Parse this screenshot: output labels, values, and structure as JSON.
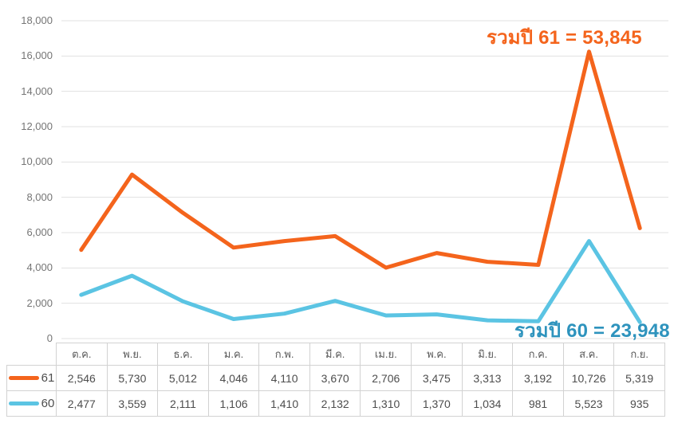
{
  "chart_data": {
    "type": "line",
    "stacked": true,
    "title": "",
    "xlabel": "",
    "ylabel": "",
    "categories": [
      "ต.ค.",
      "พ.ย.",
      "ธ.ค.",
      "ม.ค.",
      "ก.พ.",
      "มี.ค.",
      "เม.ย.",
      "พ.ค.",
      "มิ.ย.",
      "ก.ค.",
      "ส.ค.",
      "ก.ย."
    ],
    "series": [
      {
        "name": "61",
        "color": "#F4641C",
        "total": 53845,
        "values": [
          2546,
          5730,
          5012,
          4046,
          4110,
          3670,
          2706,
          3475,
          3313,
          3192,
          10726,
          5319
        ]
      },
      {
        "name": "60",
        "color": "#5BC4E3",
        "total": 23948,
        "values": [
          2477,
          3559,
          2111,
          1106,
          1410,
          2132,
          1310,
          1370,
          1034,
          981,
          5523,
          935
        ]
      }
    ],
    "stacking_note": "orange line 61 is drawn stacked on top of blue line 60",
    "ylim": [
      0,
      18000
    ],
    "ytick_step": 2000,
    "y_ticks": [
      "0",
      "2,000",
      "4,000",
      "6,000",
      "8,000",
      "10,000",
      "12,000",
      "14,000",
      "16,000",
      "18,000"
    ],
    "grid": true,
    "legend_position": "table-left"
  },
  "annotations": {
    "total61": {
      "text": "รวมปี 61 = 53,845",
      "color": "#F4641C"
    },
    "total60": {
      "text": "รวมปี 60 = 23,948",
      "color": "#2E93BD"
    }
  },
  "table": {
    "months": [
      "ต.ค.",
      "พ.ย.",
      "ธ.ค.",
      "ม.ค.",
      "ก.พ.",
      "มี.ค.",
      "เม.ย.",
      "พ.ค.",
      "มิ.ย.",
      "ก.ค.",
      "ส.ค.",
      "ก.ย."
    ],
    "rows": [
      {
        "label": "61",
        "values": [
          "2,546",
          "5,730",
          "5,012",
          "4,046",
          "4,110",
          "3,670",
          "2,706",
          "3,475",
          "3,313",
          "3,192",
          "10,726",
          "5,319"
        ]
      },
      {
        "label": "60",
        "values": [
          "2,477",
          "3,559",
          "2,111",
          "1,106",
          "1,410",
          "2,132",
          "1,310",
          "1,370",
          "1,034",
          "981",
          "5,523",
          "935"
        ]
      }
    ]
  },
  "colors": {
    "series61": "#F4641C",
    "series60": "#5BC4E3",
    "annotation60_text": "#2E93BD",
    "gridline": "#E1E1E1",
    "axis_text": "#757575",
    "table_border": "#D2D2D2",
    "table_text": "#4D4D4D"
  }
}
